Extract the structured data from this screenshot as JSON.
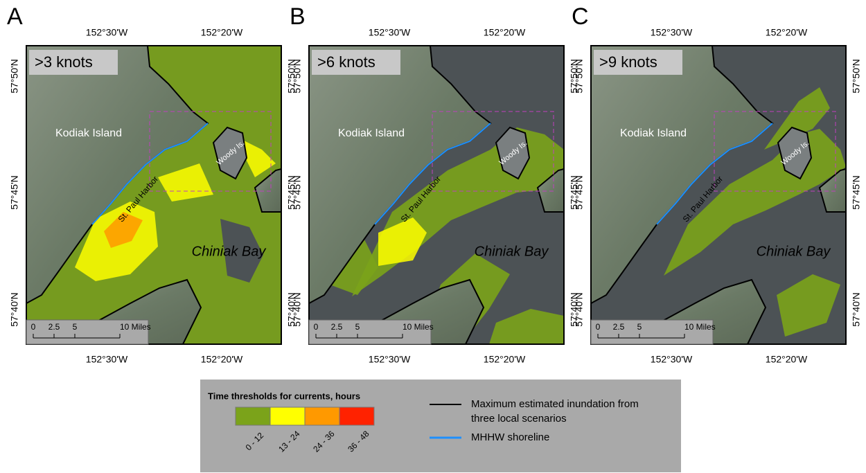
{
  "panels": [
    {
      "letter": "A",
      "threshold": ">3 knots"
    },
    {
      "letter": "B",
      "threshold": ">6 knots"
    },
    {
      "letter": "C",
      "threshold": ">9 knots"
    }
  ],
  "axes": {
    "lon_ticks": [
      "152°30'W",
      "152°20'W"
    ],
    "lat_ticks": [
      "57°50'N",
      "57°45'N",
      "57°40'N"
    ]
  },
  "place_labels": {
    "island": "Kodiak Island",
    "harbor": "St. Paul Harbor",
    "woody": "Woody Is.",
    "bay": "Chiniak Bay"
  },
  "scale_bar": [
    "0",
    "2.5",
    "5",
    "10 Miles"
  ],
  "legend": {
    "title": "Time thresholds for currents, hours",
    "classes": [
      {
        "label": "0 - 12",
        "color": "#7ba31a"
      },
      {
        "label": "13 - 24",
        "color": "#ffff00"
      },
      {
        "label": "24 - 36",
        "color": "#ff9900"
      },
      {
        "label": "36 - 48",
        "color": "#ff2200"
      }
    ],
    "inundation": [
      "Maximum estimated inundation from",
      "three local scenarios"
    ],
    "shoreline": "MHHW shoreline"
  }
}
